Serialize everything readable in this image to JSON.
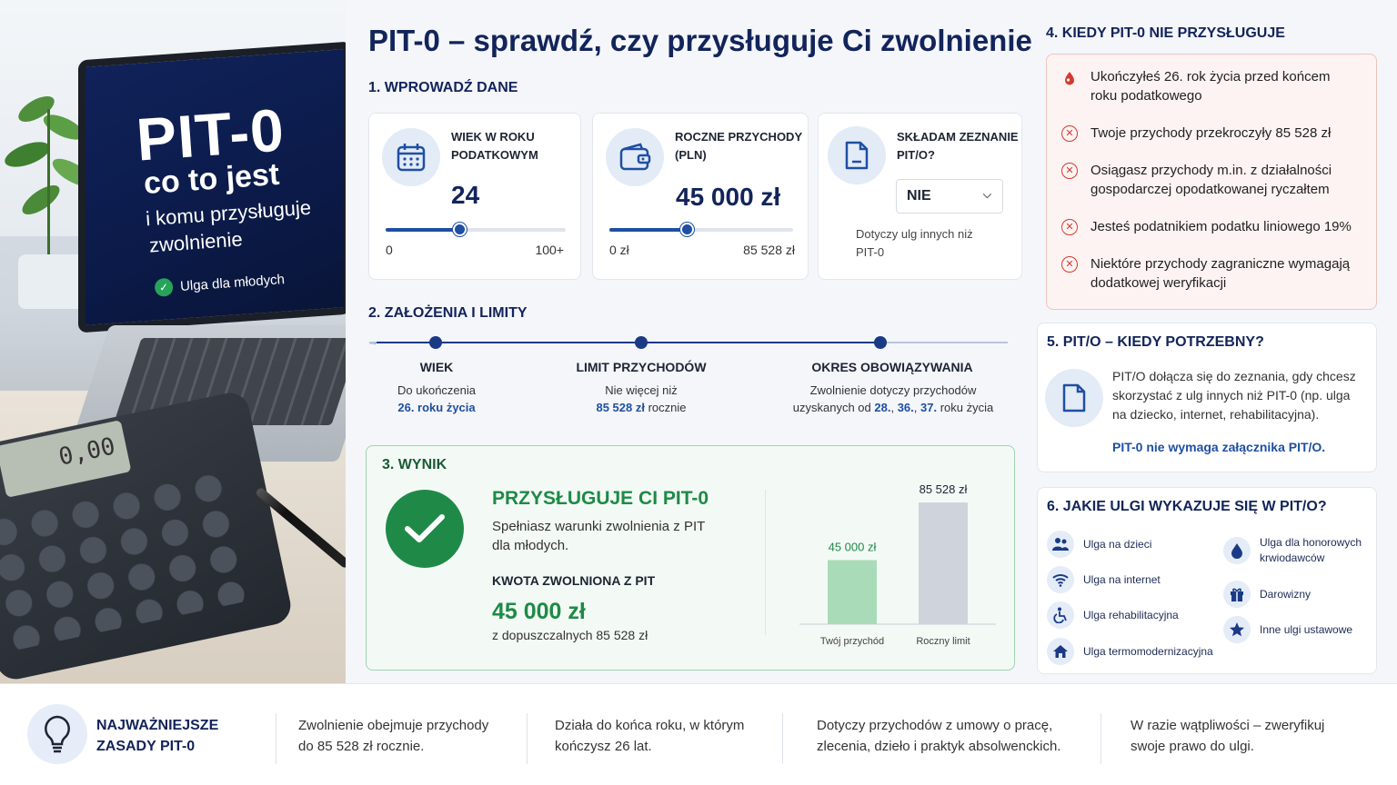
{
  "hero": {
    "title": "PIT-0",
    "subtitle_line1": "co to jest",
    "subtitle_line2": "i komu przysługuje",
    "subtitle_line3": "zwolnienie",
    "badge": "Ulga dla młodych",
    "calculator_display": "0,00"
  },
  "main_title": "PIT-0 – sprawdź, czy przysługuje Ci zwolnienie",
  "section1": {
    "title": "1. WPROWADŹ DANE",
    "age_card": {
      "label_line1": "WIEK W ROKU",
      "label_line2": "PODATKOWYM",
      "value": "24",
      "min": "0",
      "max": "100+",
      "slider_fraction": 0.41,
      "icon": "calendar-icon"
    },
    "income_card": {
      "label_line1": "ROCZNE PRZYCHODY",
      "label_line2": "(PLN)",
      "value": "45 000 zł",
      "min": "0 zł",
      "max": "85 528 zł",
      "slider_fraction": 0.42,
      "icon": "wallet-icon"
    },
    "pito_card": {
      "label_line1": "SKŁADAM ZEZNANIE",
      "label_line2": "PIT/O?",
      "selected": "NIE",
      "note_line1": "Dotyczy ulg innych niż",
      "note_line2": "PIT-0",
      "icon": "document-icon"
    }
  },
  "section2": {
    "title": "2. ZAŁOŻENIA I LIMITY",
    "items": [
      {
        "head": "WIEK",
        "line1": "Do ukończenia",
        "line2_blue": "26. roku życia",
        "line2_rest": ""
      },
      {
        "head": "LIMIT PRZYCHODÓW",
        "line1": "Nie więcej niż",
        "line2_blue": "85 528 zł",
        "line2_rest": " rocznie"
      },
      {
        "head": "OKRES OBOWIĄZYWANIA",
        "line1": "Zwolnienie dotyczy przychodów",
        "line2_pre": "uzyskanych od ",
        "line2_b1": "28.",
        "line2_c1": ", ",
        "line2_b2": "36.",
        "line2_c2": ", ",
        "line2_b3": "37.",
        "line2_rest": " roku życia"
      }
    ]
  },
  "section3": {
    "title": "3. WYNIK",
    "headline": "PRZYSŁUGUJE CI PIT-0",
    "desc_line1": "Spełniasz warunki zwolnienia z PIT",
    "desc_line2": "dla młodych.",
    "amount_label": "KWOTA ZWOLNIONA Z PIT",
    "amount": "45 000 zł",
    "limit_text": "z dopuszczalnych 85 528 zł"
  },
  "chart_data": {
    "type": "bar",
    "categories": [
      "Twój przychód",
      "Roczny limit"
    ],
    "values": [
      45000,
      85528
    ],
    "value_labels": [
      "45 000 zł",
      "85 528 zł"
    ],
    "colors": [
      "#a9dbb8",
      "#cfd3dc"
    ],
    "ylim": [
      0,
      85528
    ],
    "title": "",
    "xlabel": "",
    "ylabel": ""
  },
  "section4": {
    "title": "4. KIEDY PIT-0 NIE PRZYSŁUGUJE",
    "items": [
      {
        "line1": "Ukończyłeś 26. rok życia przed końcem",
        "line2": "roku podatkowego",
        "icon": "drop-icon"
      },
      {
        "line1": "Twoje przychody przekroczyły 85 528 zł",
        "line2": "",
        "icon": "x-icon"
      },
      {
        "line1": "Osiągasz przychody m.in. z działalności",
        "line2": "gospodarczej opodatkowanej ryczałtem",
        "icon": "x-icon"
      },
      {
        "line1": "Jesteś podatnikiem podatku liniowego 19%",
        "line2": "",
        "icon": "x-icon"
      },
      {
        "line1": "Niektóre przychody zagraniczne wymagają",
        "line2": "dodatkowej weryfikacji",
        "icon": "x-icon"
      }
    ]
  },
  "section5": {
    "title": "5. PIT/O – KIEDY POTRZEBNY?",
    "text_line1": "PIT/O dołącza się do zeznania, gdy chcesz",
    "text_line2": "skorzystać z ulg innych niż PIT-0 (np. ulga",
    "text_line3": "na dziecko, internet, rehabilitacyjna).",
    "highlight": "PIT-0 nie wymaga załącznika PIT/O."
  },
  "section6": {
    "title": "6. JAKIE ULGI WYKAZUJE SIĘ W PIT/O?",
    "left": [
      {
        "label": "Ulga na dzieci",
        "icon": "family-icon"
      },
      {
        "label": "Ulga na internet",
        "icon": "wifi-icon"
      },
      {
        "label": "Ulga rehabilitacyjna",
        "icon": "wheelchair-icon"
      },
      {
        "label": "Ulga termomodernizacyjna",
        "icon": "house-icon"
      }
    ],
    "right": [
      {
        "label_line1": "Ulga dla honorowych",
        "label_line2": "krwiodawców",
        "icon": "blood-drop-icon"
      },
      {
        "label_line1": "Darowizny",
        "label_line2": "",
        "icon": "gift-icon"
      },
      {
        "label_line1": "Inne ulgi ustawowe",
        "label_line2": "",
        "icon": "star-icon"
      }
    ]
  },
  "bottom": {
    "title_line1": "NAJWAŻNIEJSZE",
    "title_line2": "ZASADY PIT-0",
    "points": [
      {
        "line1": "Zwolnienie obejmuje przychody",
        "line2": "do 85 528 zł rocznie."
      },
      {
        "line1": "Działa do końca roku, w którym",
        "line2": "kończysz 26 lat."
      },
      {
        "line1": "Dotyczy przychodów z umowy o pracę,",
        "line2": "zlecenia, dzieło i praktyk absolwenckich."
      },
      {
        "line1": "W razie wątpliwości – zweryfikuj",
        "line2": "swoje prawo do ulgi."
      }
    ]
  }
}
